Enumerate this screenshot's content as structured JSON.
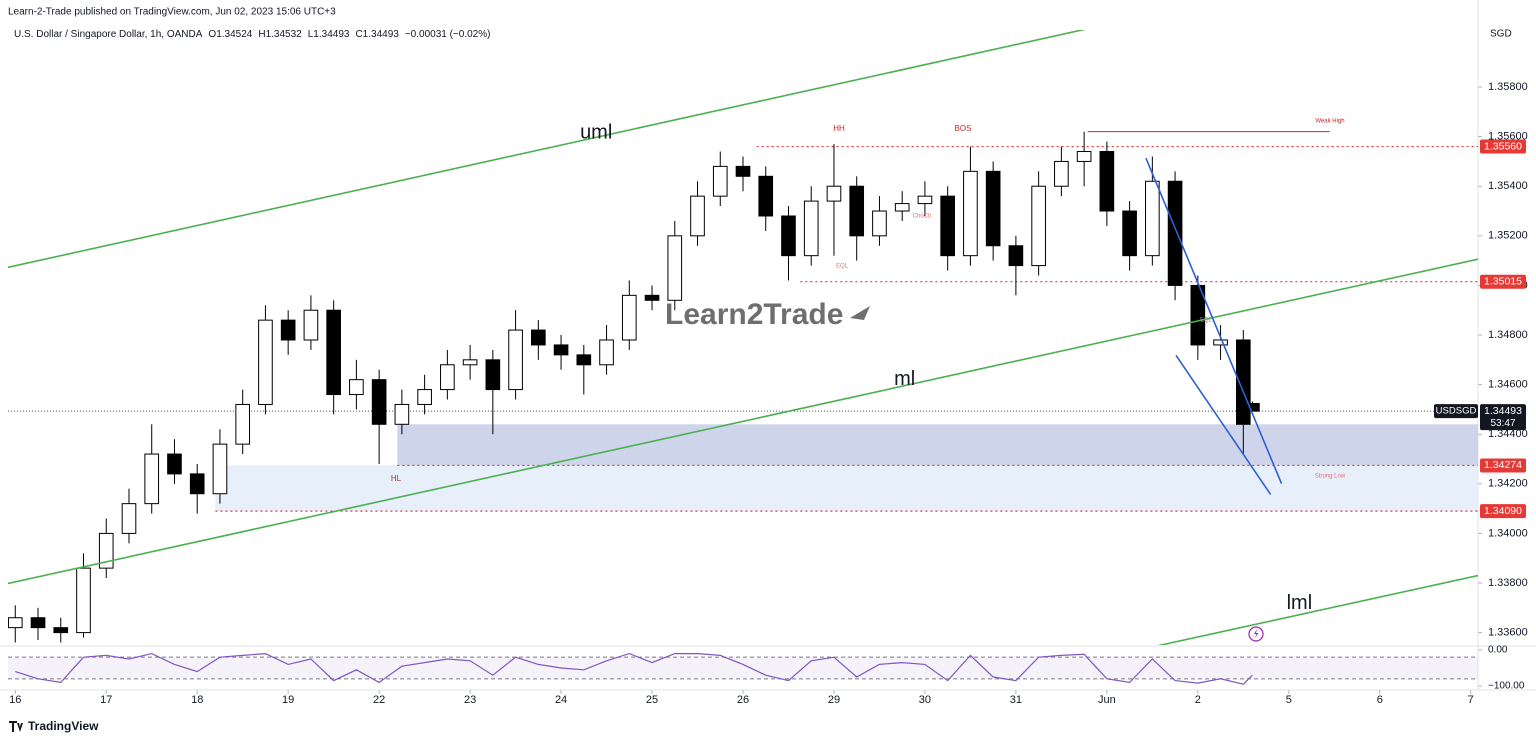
{
  "chart_data": {
    "type": "candlestick",
    "publisher": "Learn-2-Trade published on TradingView.com, Jun 02, 2023 15:06 UTC+3",
    "symbol": "U.S. Dollar / Singapore Dollar, 1h, OANDA",
    "ohlc": [
      "O1.34524",
      "H1.34532",
      "L1.34493",
      "C1.34493",
      "−0.00031 (−0.02%)"
    ],
    "currency": "SGD",
    "watermark": "Learn2Trade",
    "footer": "TradingView",
    "xlim": [
      -0.08,
      16.08
    ],
    "ylim": [
      1.3355,
      1.3603
    ],
    "xticks": [
      {
        "value": 0,
        "label": "16"
      },
      {
        "value": 1,
        "label": "17"
      },
      {
        "value": 2,
        "label": "18"
      },
      {
        "value": 3,
        "label": "19"
      },
      {
        "value": 4,
        "label": "22"
      },
      {
        "value": 5,
        "label": "23"
      },
      {
        "value": 6,
        "label": "24"
      },
      {
        "value": 7,
        "label": "25"
      },
      {
        "value": 8,
        "label": "26"
      },
      {
        "value": 9,
        "label": "29"
      },
      {
        "value": 10,
        "label": "30"
      },
      {
        "value": 11,
        "label": "31"
      },
      {
        "value": 12,
        "label": "Jun"
      },
      {
        "value": 13,
        "label": "2"
      },
      {
        "value": 14,
        "label": "5"
      },
      {
        "value": 15,
        "label": "6"
      },
      {
        "value": 16,
        "label": "7"
      }
    ],
    "yticks": [
      {
        "value": 1.358,
        "label": "1.35800"
      },
      {
        "value": 1.356,
        "label": "1.35600"
      },
      {
        "value": 1.354,
        "label": "1.35400"
      },
      {
        "value": 1.352,
        "label": "1.35200"
      },
      {
        "value": 1.35,
        "label": "1.35000"
      },
      {
        "value": 1.348,
        "label": "1.34800"
      },
      {
        "value": 1.346,
        "label": "1.34600"
      },
      {
        "value": 1.344,
        "label": "1.34400"
      },
      {
        "value": 1.342,
        "label": "1.34200"
      },
      {
        "value": 1.34,
        "label": "1.34000"
      },
      {
        "value": 1.338,
        "label": "1.33800"
      },
      {
        "value": 1.336,
        "label": "1.33600"
      }
    ],
    "up_color": "#ffffff",
    "down_color": "#000000",
    "x": [
      0,
      0.25,
      0.5,
      0.75,
      1,
      1.25,
      1.5,
      1.75,
      2,
      2.25,
      2.5,
      2.75,
      3,
      3.25,
      3.5,
      3.75,
      4,
      4.25,
      4.5,
      4.75,
      5,
      5.25,
      5.5,
      5.75,
      6,
      6.25,
      6.5,
      6.75,
      7,
      7.25,
      7.5,
      7.75,
      8,
      8.25,
      8.5,
      8.75,
      9,
      9.25,
      9.5,
      9.75,
      10,
      10.25,
      10.5,
      10.75,
      11,
      11.25,
      11.5,
      11.75,
      12,
      12.25,
      12.5,
      12.75,
      13,
      13.25,
      13.5,
      13.6
    ],
    "open": [
      1.3362,
      1.3366,
      1.3362,
      1.336,
      1.3386,
      1.34,
      1.3412,
      1.3432,
      1.3424,
      1.3416,
      1.3436,
      1.3452,
      1.3486,
      1.3478,
      1.349,
      1.3456,
      1.3462,
      1.3444,
      1.3452,
      1.3458,
      1.3468,
      1.347,
      1.3458,
      1.3482,
      1.3476,
      1.3472,
      1.3468,
      1.3478,
      1.3496,
      1.3494,
      1.352,
      1.3536,
      1.3548,
      1.3544,
      1.3528,
      1.3512,
      1.3534,
      1.354,
      1.352,
      1.353,
      1.3533,
      1.3536,
      1.3512,
      1.3546,
      1.3516,
      1.3508,
      1.354,
      1.355,
      1.3554,
      1.353,
      1.3512,
      1.3542,
      1.35,
      1.3476,
      1.3478,
      1.34524
    ],
    "high": [
      1.3371,
      1.337,
      1.3366,
      1.3392,
      1.3406,
      1.3418,
      1.3444,
      1.3438,
      1.3428,
      1.3442,
      1.3458,
      1.3492,
      1.349,
      1.3496,
      1.3494,
      1.347,
      1.3466,
      1.3458,
      1.3464,
      1.3474,
      1.3476,
      1.3474,
      1.349,
      1.3486,
      1.348,
      1.3476,
      1.3484,
      1.3502,
      1.35,
      1.3526,
      1.3542,
      1.3554,
      1.3552,
      1.3548,
      1.3532,
      1.354,
      1.3557,
      1.3544,
      1.3536,
      1.3538,
      1.3542,
      1.354,
      1.3556,
      1.355,
      1.352,
      1.3546,
      1.3556,
      1.3562,
      1.3558,
      1.3534,
      1.3552,
      1.3546,
      1.3504,
      1.3484,
      1.3482,
      1.34532
    ],
    "low": [
      1.3356,
      1.3357,
      1.3356,
      1.3358,
      1.3382,
      1.3396,
      1.3408,
      1.342,
      1.3408,
      1.3412,
      1.3432,
      1.3448,
      1.3472,
      1.3474,
      1.3448,
      1.345,
      1.3428,
      1.344,
      1.3448,
      1.3454,
      1.3462,
      1.344,
      1.3454,
      1.347,
      1.3466,
      1.3456,
      1.3464,
      1.3474,
      1.349,
      1.349,
      1.3516,
      1.3532,
      1.3538,
      1.3522,
      1.3502,
      1.3508,
      1.3512,
      1.351,
      1.3516,
      1.3526,
      1.3528,
      1.3506,
      1.3508,
      1.351,
      1.3496,
      1.3504,
      1.3536,
      1.354,
      1.3524,
      1.3506,
      1.3508,
      1.3494,
      1.347,
      1.347,
      1.3432,
      1.34493
    ],
    "close": [
      1.3366,
      1.3362,
      1.336,
      1.3386,
      1.34,
      1.3412,
      1.3432,
      1.3424,
      1.3416,
      1.3436,
      1.3452,
      1.3486,
      1.3478,
      1.349,
      1.3456,
      1.3462,
      1.3444,
      1.3452,
      1.3458,
      1.3468,
      1.347,
      1.3458,
      1.3482,
      1.3476,
      1.3472,
      1.3468,
      1.3478,
      1.3496,
      1.3494,
      1.352,
      1.3536,
      1.3548,
      1.3544,
      1.3528,
      1.3512,
      1.3534,
      1.354,
      1.352,
      1.353,
      1.3533,
      1.3536,
      1.3512,
      1.3546,
      1.3516,
      1.3508,
      1.354,
      1.355,
      1.3554,
      1.353,
      1.3512,
      1.3542,
      1.35,
      1.3476,
      1.3478,
      1.3444,
      1.34493
    ],
    "zones": [
      {
        "y": [
          1.3444,
          1.34274
        ],
        "x0": 4.2,
        "color": "#c5cde6"
      },
      {
        "y": [
          1.34274,
          1.3409
        ],
        "x0": 2.2,
        "color": "#e3ecf9"
      }
    ],
    "levels_color": "#e53935",
    "levels": [
      {
        "value": 1.3556,
        "label": "1.35560",
        "x0": 8.15
      },
      {
        "value": 1.35015,
        "label": "1.35015",
        "x0": 8.63
      },
      {
        "value": 1.34274,
        "label": "1.34274",
        "x0": 4.2
      },
      {
        "value": 1.3409,
        "label": "1.34090",
        "x0": 2.2
      }
    ],
    "weak_high": {
      "value": 1.3562,
      "x": [
        11.79,
        14.45
      ],
      "color": "#c62828"
    },
    "trend_lines": [
      {
        "label": "uml",
        "color": "#4caf50",
        "x": [
          -0.08,
          12.12
        ],
        "y": [
          1.35073,
          1.36062
        ]
      },
      {
        "label": "ml",
        "color": "#4caf50",
        "x": [
          -0.08,
          16.08
        ],
        "y": [
          1.33798,
          1.35106
        ]
      },
      {
        "label": "lml",
        "color": "#4caf50",
        "x": [
          12.51,
          16.08
        ],
        "y": [
          1.33543,
          1.3383
        ]
      }
    ],
    "wedge_lines": [
      {
        "color": "#2f5fd6",
        "x": [
          12.43,
          13.92
        ],
        "y": [
          1.35513,
          1.34201
        ]
      },
      {
        "color": "#2f5fd6",
        "x": [
          12.76,
          13.8
        ],
        "y": [
          1.34718,
          1.34157
        ]
      }
    ],
    "annotations": [
      "HH",
      "BOS",
      "EQL",
      "ChoCh",
      "HL",
      "Weak High",
      "Strong Low",
      "EQL"
    ],
    "last": {
      "symbol": "USDSGD",
      "value": 1.34493,
      "label": "1.34493",
      "countdown": "53:47"
    },
    "oscillator": {
      "color": "#7e57c2",
      "ylim": [
        -111,
        11
      ],
      "yticks": [
        {
          "value": 0,
          "label": "0.00"
        },
        {
          "value": -100,
          "label": "−100.00"
        }
      ],
      "levels": [
        -20,
        -80
      ],
      "values": [
        -60,
        -80,
        -90,
        -20,
        -15,
        -25,
        -10,
        -40,
        -60,
        -20,
        -15,
        -10,
        -40,
        -25,
        -85,
        -55,
        -90,
        -45,
        -35,
        -25,
        -30,
        -70,
        -20,
        -40,
        -50,
        -55,
        -30,
        -10,
        -35,
        -10,
        -10,
        -15,
        -40,
        -70,
        -85,
        -30,
        -20,
        -75,
        -40,
        -35,
        -40,
        -85,
        -15,
        -75,
        -85,
        -20,
        -15,
        -12,
        -80,
        -90,
        -25,
        -85,
        -92,
        -80,
        -95,
        -70
      ]
    }
  }
}
